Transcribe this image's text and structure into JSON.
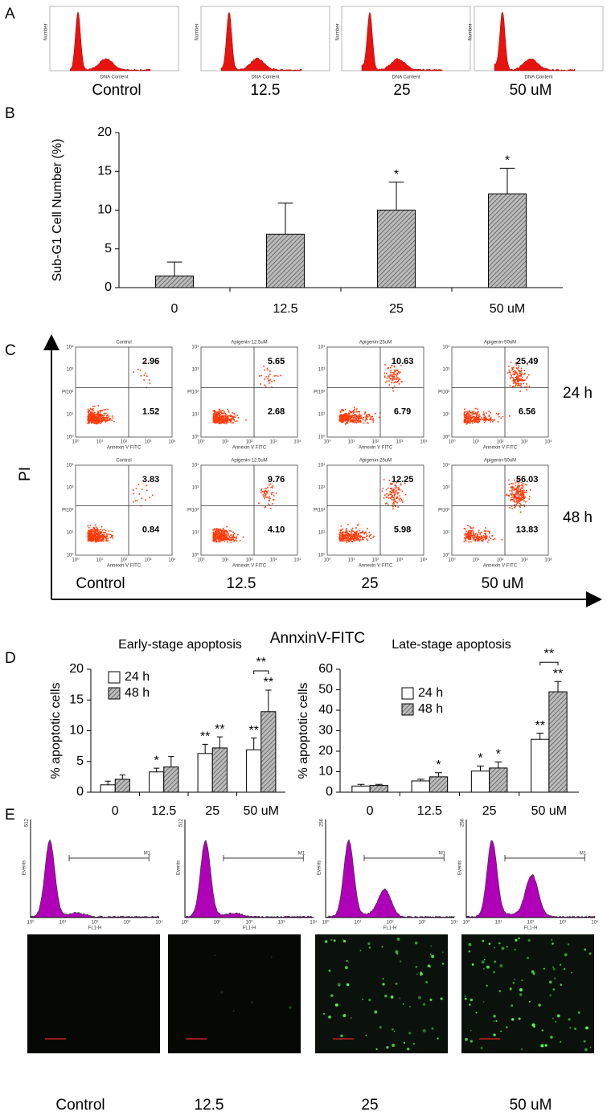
{
  "panels": {
    "a": "A",
    "b": "B",
    "c": "C",
    "d": "D",
    "e": "E"
  },
  "panel_a": {
    "conditions": [
      "Control",
      "12.5",
      "25",
      "50 uM"
    ],
    "x_label": "DNA Content",
    "y_label": "Number"
  },
  "chart_data": [
    {
      "type": "bar",
      "y_label": "Sub-G1 Cell Number (%)",
      "categories": [
        "0",
        "12.5",
        "25",
        "50 uM"
      ],
      "values": [
        1.5,
        6.9,
        10,
        12.1
      ],
      "errors": [
        1.8,
        4.0,
        3.6,
        3.3
      ],
      "significance": [
        null,
        null,
        "*",
        "*"
      ],
      "color": "#aaaaaa",
      "ylim": [
        0,
        20
      ],
      "yticks": [
        0,
        5,
        10,
        15,
        20
      ]
    },
    {
      "type": "bar",
      "title": "Early-stage apoptosis",
      "y_label": "% apoptotic cells",
      "categories": [
        "0",
        "12.5",
        "25",
        "50 uM"
      ],
      "series": [
        {
          "name": "24 h",
          "color": "#ffffff",
          "values": [
            1.2,
            3.3,
            6.3,
            6.9
          ],
          "errors": [
            0.6,
            0.6,
            1.5,
            1.9
          ],
          "significance": [
            null,
            "*",
            "**",
            "**"
          ]
        },
        {
          "name": "48 h",
          "color": "#aaaaaa",
          "values": [
            2.1,
            4.1,
            7.2,
            13.1
          ],
          "errors": [
            0.7,
            1.7,
            1.8,
            3.5
          ],
          "significance": [
            null,
            null,
            "**",
            "**"
          ]
        }
      ],
      "bracket_label": "**",
      "ylim": [
        0,
        20
      ],
      "yticks": [
        0,
        5,
        10,
        15,
        20
      ]
    },
    {
      "type": "bar",
      "title": "Late-stage apoptosis",
      "y_label": "% apoptotic cells",
      "categories": [
        "0",
        "12.5",
        "25",
        "50 uM"
      ],
      "series": [
        {
          "name": "24 h",
          "color": "#ffffff",
          "values": [
            3,
            5.5,
            10.3,
            25.8
          ],
          "errors": [
            0.8,
            0.8,
            2.5,
            3
          ],
          "significance": [
            null,
            null,
            "*",
            "**"
          ]
        },
        {
          "name": "48 h",
          "color": "#aaaaaa",
          "values": [
            3.3,
            7.5,
            11.8,
            49
          ],
          "errors": [
            0.5,
            2,
            3,
            5
          ],
          "significance": [
            null,
            "*",
            "*",
            "**"
          ]
        }
      ],
      "bracket_label": "**",
      "ylim": [
        0,
        60
      ],
      "yticks": [
        0,
        10,
        20,
        30,
        40,
        50,
        60
      ]
    }
  ],
  "panel_c": {
    "titles": [
      [
        "Control",
        "Apigenin-12.5uM",
        "Apigenin-25uM",
        "Apigenin-50uM"
      ],
      [
        "Control",
        "Apigenin-12.5uM",
        "Apigenin-25uM",
        "Apigenin-50uM"
      ]
    ],
    "upper": [
      [
        "2.96",
        "5.65",
        "10.63",
        "25.49"
      ],
      [
        "3.83",
        "9.76",
        "12.25",
        "56.03"
      ]
    ],
    "lower": [
      [
        "1.52",
        "2.68",
        "6.79",
        "6.56"
      ],
      [
        "0.84",
        "4.10",
        "5.98",
        "13.83"
      ]
    ],
    "row_labels": [
      "24 h",
      "48 h"
    ],
    "conditions": [
      "Control",
      "12.5",
      "25",
      "50 uM"
    ],
    "y_title": "PI",
    "x_title": "AnnxinV-FITC",
    "plot_x_label": "Annexin V FITC",
    "plot_y_label": "PI",
    "ticks": [
      "10⁰",
      "10¹",
      "10²",
      "10³",
      "10⁴"
    ]
  },
  "panel_e": {
    "y_max": [
      "512",
      "512",
      "256",
      "256"
    ],
    "x_label": "FL1-H",
    "y_label": "Events",
    "gate": "M1",
    "ticks": [
      "10⁰",
      "10¹",
      "10²",
      "10³",
      "10⁴"
    ],
    "conditions": [
      "Control",
      "12.5",
      "25",
      "50 uM"
    ]
  }
}
